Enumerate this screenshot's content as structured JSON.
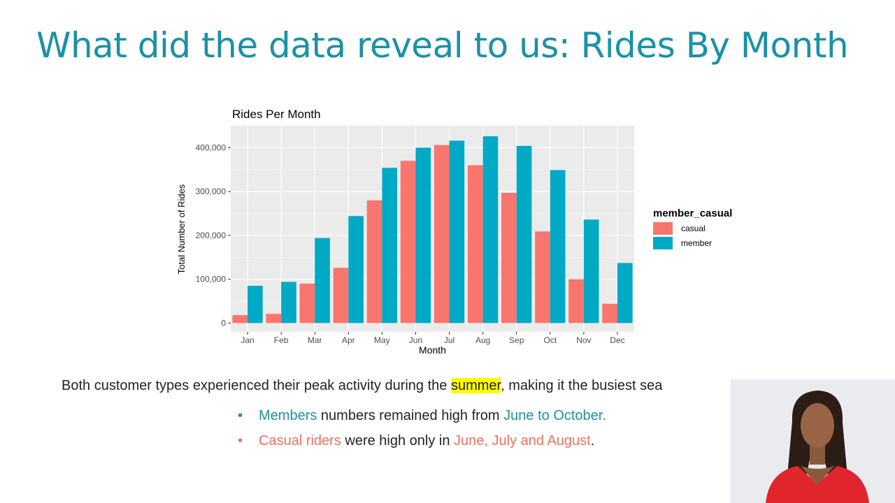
{
  "slide": {
    "title": "What did the data reveal to us: Rides By Month"
  },
  "chart_data": {
    "type": "bar",
    "title": "Rides Per Month",
    "xlabel": "Month",
    "ylabel": "Total Number of Rides",
    "categories": [
      "Jan",
      "Feb",
      "Mar",
      "Apr",
      "May",
      "Jun",
      "Jul",
      "Aug",
      "Sep",
      "Oct",
      "Nov",
      "Dec"
    ],
    "series": [
      {
        "name": "casual",
        "color": "#f8766d",
        "values": [
          18000,
          21000,
          90000,
          126000,
          280000,
          370000,
          406000,
          360000,
          297000,
          209000,
          100000,
          44000
        ]
      },
      {
        "name": "member",
        "color": "#00a9c4",
        "values": [
          85000,
          94000,
          194000,
          244000,
          354000,
          400000,
          416000,
          426000,
          404000,
          349000,
          236000,
          137000
        ]
      }
    ],
    "ylim": [
      -20000,
      450000
    ],
    "yticks": [
      0,
      100000,
      200000,
      300000,
      400000
    ],
    "ytick_labels": [
      "0",
      "100,000",
      "200,000",
      "300,000",
      "400,000"
    ],
    "legend_title": "member_casual",
    "legend_position": "right",
    "grid": true,
    "panel_background": "#ebebeb"
  },
  "summary": {
    "pre": "Both customer types experienced their peak activity during the ",
    "highlight": "summer",
    "post": ",  making it the busiest sea"
  },
  "bullets": [
    {
      "bullet": "•",
      "accent": "Members",
      "middle": " numbers remained high from ",
      "accent2": "June to October.",
      "tail": ""
    },
    {
      "bullet": "•",
      "accent": "Casual riders",
      "middle": " were high only in ",
      "accent2": "June, July and August",
      "tail": "."
    }
  ],
  "colors": {
    "title": "#1a91a6",
    "teal_text": "#1a91a6",
    "coral_text": "#e8715e",
    "highlight": "#ffff00"
  }
}
